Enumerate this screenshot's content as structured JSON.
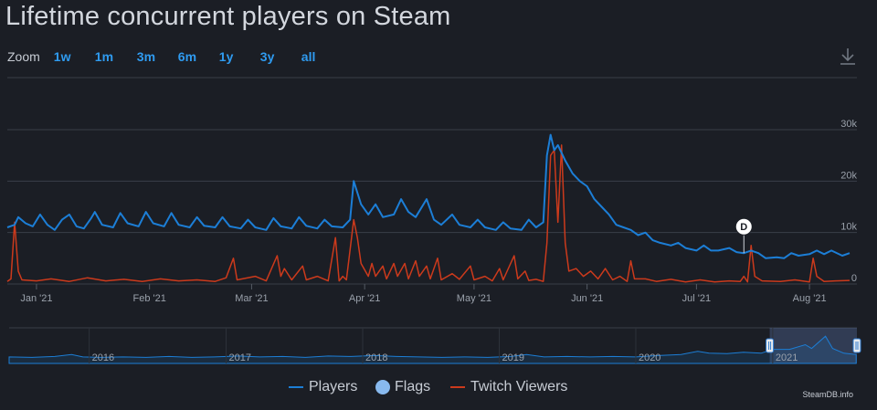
{
  "title": "Lifetime concurrent players on Steam",
  "zoom": {
    "label": "Zoom",
    "options": [
      "1w",
      "1m",
      "3m",
      "6m",
      "1y",
      "3y",
      "all"
    ]
  },
  "icons": {
    "download": "download-icon"
  },
  "colors": {
    "background": "#1b1e25",
    "players": "#1c7ed6",
    "twitch": "#cc3a1c",
    "flags": "#88b9ee",
    "zoom_link": "#2f9bf0",
    "grid": "#3a3f48"
  },
  "legend": {
    "players": "Players",
    "flags": "Flags",
    "twitch": "Twitch Viewers"
  },
  "credit": "SteamDB.info",
  "chart_data": {
    "type": "line",
    "y_axis": {
      "min": 0,
      "max": 30000,
      "ticks": [
        "0",
        "10k",
        "20k",
        "30k"
      ],
      "grid": true,
      "position": "right"
    },
    "x_axis": {
      "start": "2020-12-24",
      "end": "2021-08-14",
      "ticks": [
        "Jan '21",
        "Feb '21",
        "Mar '21",
        "Apr '21",
        "May '21",
        "Jun '21",
        "Jul '21",
        "Aug '21"
      ],
      "tick_dates": [
        "2021-01-01",
        "2021-02-01",
        "2021-03-01",
        "2021-04-01",
        "2021-05-01",
        "2021-06-01",
        "2021-07-01",
        "2021-08-01"
      ]
    },
    "flags": [
      {
        "date": "2021-07-14",
        "label": "D"
      }
    ],
    "series": [
      {
        "name": "Players",
        "points": [
          [
            "2020-12-24",
            11000
          ],
          [
            "2020-12-26",
            11500
          ],
          [
            "2020-12-27",
            13000
          ],
          [
            "2020-12-29",
            11800
          ],
          [
            "2020-12-31",
            11200
          ],
          [
            "2021-01-02",
            13500
          ],
          [
            "2021-01-04",
            11500
          ],
          [
            "2021-01-06",
            10500
          ],
          [
            "2021-01-08",
            12500
          ],
          [
            "2021-01-10",
            13500
          ],
          [
            "2021-01-12",
            11200
          ],
          [
            "2021-01-14",
            10800
          ],
          [
            "2021-01-16",
            12800
          ],
          [
            "2021-01-17",
            14000
          ],
          [
            "2021-01-19",
            11500
          ],
          [
            "2021-01-22",
            11000
          ],
          [
            "2021-01-24",
            13800
          ],
          [
            "2021-01-26",
            11800
          ],
          [
            "2021-01-29",
            11200
          ],
          [
            "2021-01-31",
            14000
          ],
          [
            "2021-02-02",
            11800
          ],
          [
            "2021-02-05",
            11200
          ],
          [
            "2021-02-07",
            13800
          ],
          [
            "2021-02-09",
            11500
          ],
          [
            "2021-02-12",
            11000
          ],
          [
            "2021-02-14",
            13000
          ],
          [
            "2021-02-16",
            11300
          ],
          [
            "2021-02-19",
            11000
          ],
          [
            "2021-02-21",
            13000
          ],
          [
            "2021-02-23",
            11200
          ],
          [
            "2021-02-26",
            10800
          ],
          [
            "2021-02-28",
            12500
          ],
          [
            "2021-03-02",
            11000
          ],
          [
            "2021-03-05",
            10500
          ],
          [
            "2021-03-07",
            12800
          ],
          [
            "2021-03-09",
            11200
          ],
          [
            "2021-03-12",
            10800
          ],
          [
            "2021-03-14",
            13000
          ],
          [
            "2021-03-16",
            11300
          ],
          [
            "2021-03-19",
            10800
          ],
          [
            "2021-03-21",
            12500
          ],
          [
            "2021-03-23",
            11200
          ],
          [
            "2021-03-26",
            11000
          ],
          [
            "2021-03-28",
            12500
          ],
          [
            "2021-03-29",
            20000
          ],
          [
            "2021-03-31",
            15500
          ],
          [
            "2021-04-02",
            13500
          ],
          [
            "2021-04-04",
            15500
          ],
          [
            "2021-04-06",
            13000
          ],
          [
            "2021-04-09",
            13500
          ],
          [
            "2021-04-11",
            16500
          ],
          [
            "2021-04-13",
            14000
          ],
          [
            "2021-04-15",
            13000
          ],
          [
            "2021-04-18",
            16500
          ],
          [
            "2021-04-20",
            12500
          ],
          [
            "2021-04-22",
            11500
          ],
          [
            "2021-04-25",
            13500
          ],
          [
            "2021-04-27",
            11500
          ],
          [
            "2021-04-30",
            11000
          ],
          [
            "2021-05-02",
            12500
          ],
          [
            "2021-05-04",
            11000
          ],
          [
            "2021-05-07",
            10500
          ],
          [
            "2021-05-09",
            12000
          ],
          [
            "2021-05-11",
            10800
          ],
          [
            "2021-05-14",
            10500
          ],
          [
            "2021-05-16",
            12500
          ],
          [
            "2021-05-18",
            11000
          ],
          [
            "2021-05-20",
            12000
          ],
          [
            "2021-05-21",
            25000
          ],
          [
            "2021-05-22",
            29000
          ],
          [
            "2021-05-23",
            26000
          ],
          [
            "2021-05-24",
            27000
          ],
          [
            "2021-05-26",
            24000
          ],
          [
            "2021-05-28",
            21500
          ],
          [
            "2021-05-30",
            20000
          ],
          [
            "2021-06-01",
            19000
          ],
          [
            "2021-06-03",
            16500
          ],
          [
            "2021-06-05",
            15000
          ],
          [
            "2021-06-07",
            13500
          ],
          [
            "2021-06-09",
            11500
          ],
          [
            "2021-06-11",
            11000
          ],
          [
            "2021-06-13",
            10500
          ],
          [
            "2021-06-15",
            9500
          ],
          [
            "2021-06-17",
            10000
          ],
          [
            "2021-06-19",
            8500
          ],
          [
            "2021-06-21",
            8000
          ],
          [
            "2021-06-24",
            7500
          ],
          [
            "2021-06-26",
            8000
          ],
          [
            "2021-06-28",
            7000
          ],
          [
            "2021-07-01",
            6500
          ],
          [
            "2021-07-03",
            7500
          ],
          [
            "2021-07-05",
            6500
          ],
          [
            "2021-07-07",
            6500
          ],
          [
            "2021-07-10",
            7000
          ],
          [
            "2021-07-12",
            6200
          ],
          [
            "2021-07-14",
            6000
          ],
          [
            "2021-07-16",
            6500
          ],
          [
            "2021-07-18",
            6000
          ],
          [
            "2021-07-20",
            5000
          ],
          [
            "2021-07-23",
            5200
          ],
          [
            "2021-07-25",
            5000
          ],
          [
            "2021-07-27",
            6000
          ],
          [
            "2021-07-29",
            5500
          ],
          [
            "2021-08-01",
            5800
          ],
          [
            "2021-08-03",
            6500
          ],
          [
            "2021-08-05",
            5800
          ],
          [
            "2021-08-07",
            6500
          ],
          [
            "2021-08-10",
            5500
          ],
          [
            "2021-08-12",
            6000
          ]
        ]
      },
      {
        "name": "Twitch Viewers",
        "points": [
          [
            "2020-12-24",
            500
          ],
          [
            "2020-12-25",
            1000
          ],
          [
            "2020-12-26",
            12000
          ],
          [
            "2020-12-27",
            2500
          ],
          [
            "2020-12-28",
            800
          ],
          [
            "2021-01-01",
            600
          ],
          [
            "2021-01-05",
            1000
          ],
          [
            "2021-01-10",
            500
          ],
          [
            "2021-01-15",
            1200
          ],
          [
            "2021-01-20",
            600
          ],
          [
            "2021-01-25",
            900
          ],
          [
            "2021-01-30",
            500
          ],
          [
            "2021-02-04",
            1000
          ],
          [
            "2021-02-09",
            600
          ],
          [
            "2021-02-14",
            800
          ],
          [
            "2021-02-19",
            500
          ],
          [
            "2021-02-22",
            1200
          ],
          [
            "2021-02-24",
            5000
          ],
          [
            "2021-02-25",
            800
          ],
          [
            "2021-03-02",
            1500
          ],
          [
            "2021-03-05",
            600
          ],
          [
            "2021-03-08",
            5500
          ],
          [
            "2021-03-09",
            1500
          ],
          [
            "2021-03-10",
            3000
          ],
          [
            "2021-03-12",
            800
          ],
          [
            "2021-03-15",
            3500
          ],
          [
            "2021-03-16",
            800
          ],
          [
            "2021-03-19",
            1500
          ],
          [
            "2021-03-22",
            600
          ],
          [
            "2021-03-24",
            9000
          ],
          [
            "2021-03-25",
            600
          ],
          [
            "2021-03-26",
            1500
          ],
          [
            "2021-03-27",
            800
          ],
          [
            "2021-03-29",
            12500
          ],
          [
            "2021-03-30",
            9000
          ],
          [
            "2021-03-31",
            4000
          ],
          [
            "2021-04-02",
            1500
          ],
          [
            "2021-04-03",
            4000
          ],
          [
            "2021-04-04",
            1500
          ],
          [
            "2021-04-06",
            3500
          ],
          [
            "2021-04-07",
            1000
          ],
          [
            "2021-04-09",
            4000
          ],
          [
            "2021-04-10",
            1500
          ],
          [
            "2021-04-12",
            4000
          ],
          [
            "2021-04-13",
            1000
          ],
          [
            "2021-04-15",
            4500
          ],
          [
            "2021-04-16",
            1500
          ],
          [
            "2021-04-18",
            3500
          ],
          [
            "2021-04-19",
            1000
          ],
          [
            "2021-04-21",
            5000
          ],
          [
            "2021-04-22",
            800
          ],
          [
            "2021-04-25",
            2000
          ],
          [
            "2021-04-27",
            900
          ],
          [
            "2021-04-30",
            3500
          ],
          [
            "2021-05-01",
            800
          ],
          [
            "2021-05-04",
            1500
          ],
          [
            "2021-05-06",
            600
          ],
          [
            "2021-05-08",
            3000
          ],
          [
            "2021-05-09",
            800
          ],
          [
            "2021-05-12",
            5500
          ],
          [
            "2021-05-13",
            1000
          ],
          [
            "2021-05-15",
            2500
          ],
          [
            "2021-05-16",
            700
          ],
          [
            "2021-05-18",
            900
          ],
          [
            "2021-05-20",
            500
          ],
          [
            "2021-05-21",
            8000
          ],
          [
            "2021-05-22",
            25000
          ],
          [
            "2021-05-23",
            26000
          ],
          [
            "2021-05-24",
            12000
          ],
          [
            "2021-05-25",
            27000
          ],
          [
            "2021-05-26",
            8000
          ],
          [
            "2021-05-27",
            2500
          ],
          [
            "2021-05-29",
            3000
          ],
          [
            "2021-05-31",
            1500
          ],
          [
            "2021-06-02",
            2500
          ],
          [
            "2021-06-04",
            1000
          ],
          [
            "2021-06-06",
            3000
          ],
          [
            "2021-06-08",
            800
          ],
          [
            "2021-06-10",
            1500
          ],
          [
            "2021-06-12",
            500
          ],
          [
            "2021-06-13",
            4500
          ],
          [
            "2021-06-14",
            1000
          ],
          [
            "2021-06-17",
            1000
          ],
          [
            "2021-06-20",
            500
          ],
          [
            "2021-06-24",
            900
          ],
          [
            "2021-06-28",
            400
          ],
          [
            "2021-07-02",
            800
          ],
          [
            "2021-07-06",
            400
          ],
          [
            "2021-07-10",
            600
          ],
          [
            "2021-07-13",
            500
          ],
          [
            "2021-07-14",
            1500
          ],
          [
            "2021-07-15",
            400
          ],
          [
            "2021-07-16",
            7500
          ],
          [
            "2021-07-17",
            1500
          ],
          [
            "2021-07-19",
            600
          ],
          [
            "2021-07-24",
            500
          ],
          [
            "2021-07-28",
            800
          ],
          [
            "2021-08-01",
            400
          ],
          [
            "2021-08-02",
            5000
          ],
          [
            "2021-08-03",
            1500
          ],
          [
            "2021-08-05",
            500
          ],
          [
            "2021-08-08",
            600
          ],
          [
            "2021-08-12",
            700
          ]
        ]
      }
    ],
    "navigator": {
      "year_labels": [
        "2016",
        "2017",
        "2018",
        "2019",
        "2020",
        "2021"
      ],
      "start": "2015-06-01",
      "end": "2021-08-14",
      "selected_range": [
        "2020-12-24",
        "2021-08-14"
      ],
      "points": [
        [
          "2015-06-01",
          3000
        ],
        [
          "2015-08-01",
          2500
        ],
        [
          "2015-10-01",
          3500
        ],
        [
          "2015-11-15",
          5500
        ],
        [
          "2015-12-15",
          3000
        ],
        [
          "2016-02-01",
          2500
        ],
        [
          "2016-04-01",
          3000
        ],
        [
          "2016-06-01",
          2500
        ],
        [
          "2016-08-01",
          3500
        ],
        [
          "2016-10-01",
          2500
        ],
        [
          "2016-12-01",
          3000
        ],
        [
          "2017-02-01",
          4000
        ],
        [
          "2017-04-01",
          3000
        ],
        [
          "2017-06-01",
          3500
        ],
        [
          "2017-08-01",
          2500
        ],
        [
          "2017-10-01",
          4000
        ],
        [
          "2017-12-01",
          3500
        ],
        [
          "2018-02-01",
          4500
        ],
        [
          "2018-04-01",
          3500
        ],
        [
          "2018-06-01",
          3000
        ],
        [
          "2018-08-01",
          2500
        ],
        [
          "2018-10-01",
          3000
        ],
        [
          "2018-12-01",
          2500
        ],
        [
          "2019-02-01",
          3500
        ],
        [
          "2019-03-15",
          5500
        ],
        [
          "2019-05-01",
          3000
        ],
        [
          "2019-07-01",
          3500
        ],
        [
          "2019-09-01",
          3000
        ],
        [
          "2019-11-01",
          3500
        ],
        [
          "2020-01-01",
          3000
        ],
        [
          "2020-03-01",
          4500
        ],
        [
          "2020-05-01",
          5500
        ],
        [
          "2020-06-15",
          9000
        ],
        [
          "2020-07-15",
          7000
        ],
        [
          "2020-09-01",
          6500
        ],
        [
          "2020-10-15",
          8000
        ],
        [
          "2020-12-01",
          7000
        ],
        [
          "2021-01-01",
          11000
        ],
        [
          "2021-02-15",
          11000
        ],
        [
          "2021-03-29",
          16000
        ],
        [
          "2021-04-15",
          12000
        ],
        [
          "2021-05-22",
          25000
        ],
        [
          "2021-06-10",
          12000
        ],
        [
          "2021-07-10",
          7000
        ],
        [
          "2021-08-12",
          5500
        ]
      ]
    }
  }
}
